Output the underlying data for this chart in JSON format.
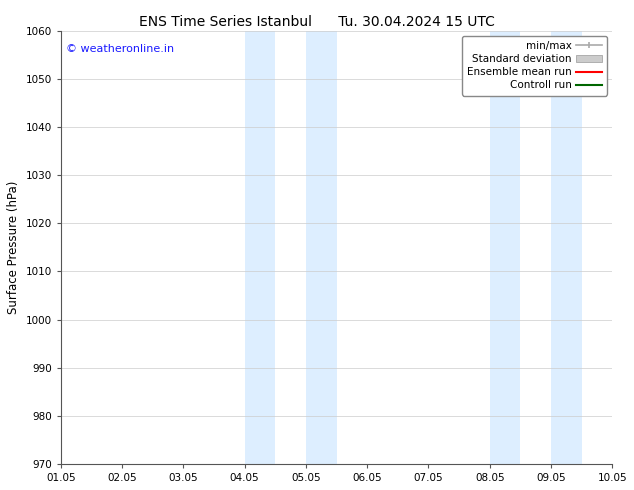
{
  "title_left": "ENS Time Series Istanbul",
  "title_right": "Tu. 30.04.2024 15 UTC",
  "ylabel": "Surface Pressure (hPa)",
  "ylim": [
    970,
    1060
  ],
  "yticks": [
    970,
    980,
    990,
    1000,
    1010,
    1020,
    1030,
    1040,
    1050,
    1060
  ],
  "xtick_labels": [
    "01.05",
    "02.05",
    "03.05",
    "04.05",
    "05.05",
    "06.05",
    "07.05",
    "08.05",
    "09.05",
    "10.05"
  ],
  "xlim": [
    0,
    9
  ],
  "shade_regions": [
    {
      "x_start": 3.0,
      "x_end": 3.5
    },
    {
      "x_start": 4.0,
      "x_end": 4.5
    },
    {
      "x_start": 7.0,
      "x_end": 7.5
    },
    {
      "x_start": 8.0,
      "x_end": 8.5
    }
  ],
  "shade_color": "#ddeeff",
  "watermark_text": "© weatheronline.in",
  "watermark_color": "#1a1aff",
  "legend_items": [
    {
      "label": "min/max",
      "color": "#aaaaaa",
      "lw": 1.2,
      "style": "minmax"
    },
    {
      "label": "Standard deviation",
      "color": "#cccccc",
      "lw": 5,
      "style": "bar"
    },
    {
      "label": "Ensemble mean run",
      "color": "#ff0000",
      "lw": 1.5,
      "style": "line"
    },
    {
      "label": "Controll run",
      "color": "#006600",
      "lw": 1.5,
      "style": "line"
    }
  ],
  "bg_color": "#ffffff",
  "grid_color": "#cccccc",
  "tick_fontsize": 7.5,
  "title_fontsize": 10,
  "ylabel_fontsize": 8.5,
  "legend_fontsize": 7.5
}
